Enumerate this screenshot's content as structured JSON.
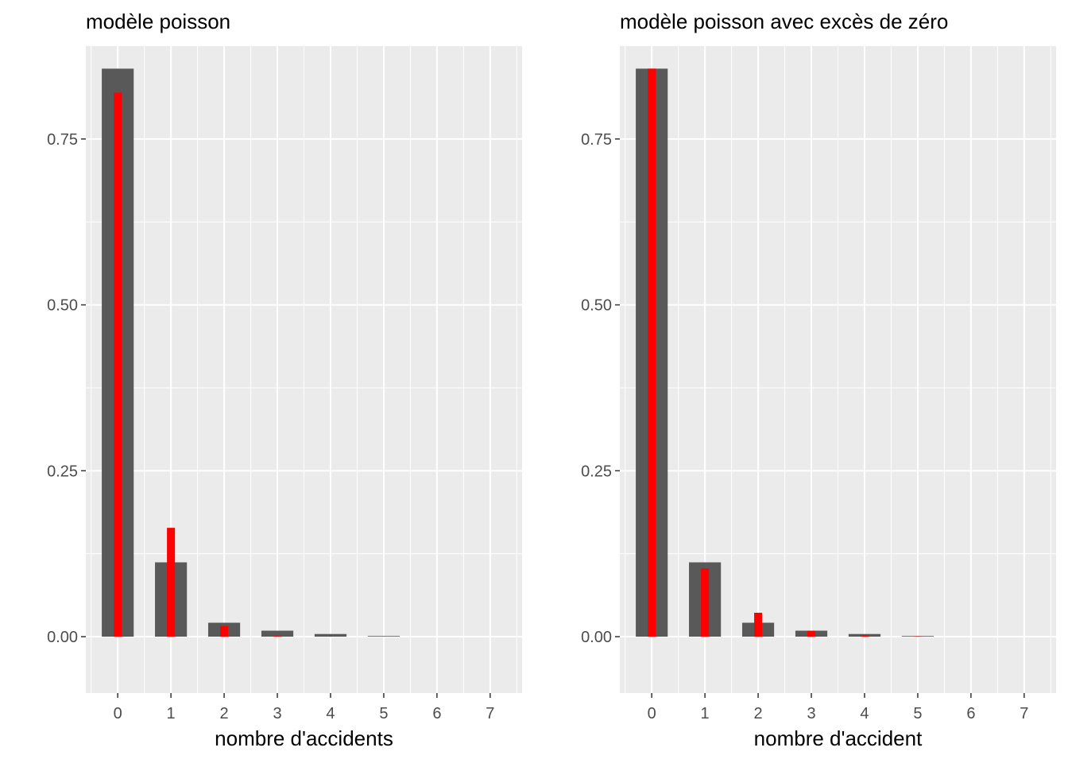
{
  "chart_data": [
    {
      "type": "bar",
      "title": "modèle poisson",
      "xlabel": "nombre d'accidents",
      "ylabel": "",
      "categories": [
        "0",
        "1",
        "2",
        "3",
        "4",
        "5",
        "6",
        "7"
      ],
      "x": [
        0,
        1,
        2,
        3,
        4,
        5,
        6,
        7
      ],
      "ylim": [
        -0.085,
        0.89
      ],
      "yticks": [
        0.0,
        0.25,
        0.5,
        0.75
      ],
      "ytick_labels": [
        "0.00",
        "0.25",
        "0.50",
        "0.75"
      ],
      "grid": true,
      "series": [
        {
          "values": [
            0.856,
            0.112,
            0.021,
            0.009,
            0.004,
            0.001,
            0.0,
            0.0
          ],
          "color": "#595959"
        },
        {
          "values": [
            0.82,
            0.164,
            0.016,
            0.001,
            0.0,
            0.0,
            0.0,
            0.0
          ],
          "color": "#ff0000"
        }
      ]
    },
    {
      "type": "bar",
      "title": "modèle poisson avec excès de zéro",
      "xlabel": "nombre d'accident",
      "ylabel": "",
      "categories": [
        "0",
        "1",
        "2",
        "3",
        "4",
        "5",
        "6",
        "7"
      ],
      "x": [
        0,
        1,
        2,
        3,
        4,
        5,
        6,
        7
      ],
      "ylim": [
        -0.085,
        0.89
      ],
      "yticks": [
        0.0,
        0.25,
        0.5,
        0.75
      ],
      "ytick_labels": [
        "0.00",
        "0.25",
        "0.50",
        "0.75"
      ],
      "grid": true,
      "series": [
        {
          "values": [
            0.856,
            0.112,
            0.021,
            0.009,
            0.004,
            0.001,
            0.0,
            0.0
          ],
          "color": "#595959"
        },
        {
          "values": [
            0.856,
            0.103,
            0.036,
            0.009,
            0.002,
            0.0005,
            0.0,
            0.0
          ],
          "color": "#ff0000"
        }
      ]
    }
  ]
}
